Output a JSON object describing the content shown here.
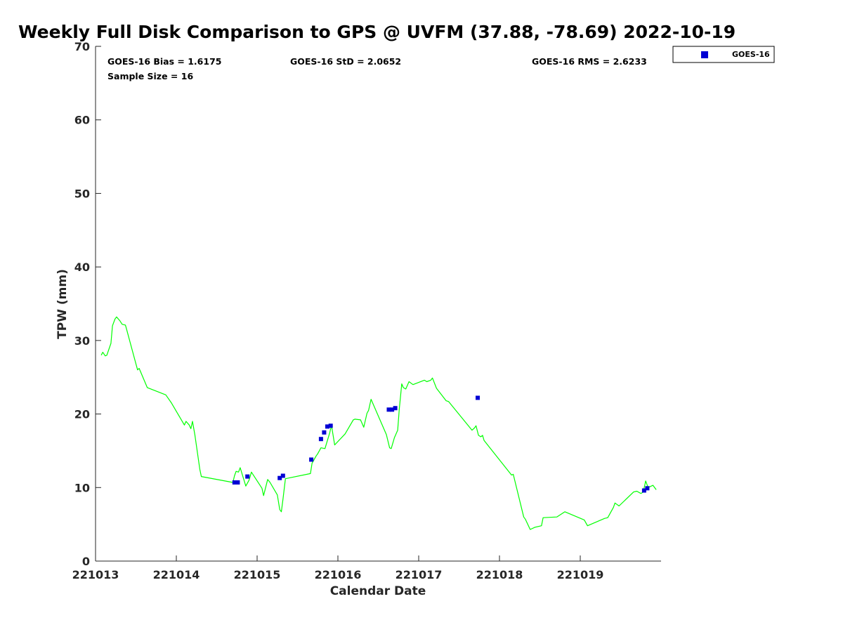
{
  "chart_data": {
    "type": "line",
    "title": "Weekly Full Disk Comparison to GPS @ UVFM (37.88, -78.69) 2022-10-19",
    "xlabel": "Calendar Date",
    "ylabel": "TPW (mm)",
    "xlim": [
      221013.0,
      221020.0
    ],
    "ylim": [
      0,
      70
    ],
    "x_ticks": [
      221013,
      221014,
      221015,
      221016,
      221017,
      221018,
      221019
    ],
    "x_tick_labels": [
      "221013",
      "221014",
      "221015",
      "221016",
      "221017",
      "221018",
      "221019"
    ],
    "y_ticks": [
      0,
      10,
      20,
      30,
      40,
      50,
      60,
      70
    ],
    "y_tick_labels": [
      "0",
      "10",
      "20",
      "30",
      "40",
      "50",
      "60",
      "70"
    ],
    "grid": false,
    "legend_position": "top-right, outside plot",
    "stats": {
      "bias": "GOES-16 Bias = 1.6175",
      "std": "GOES-16 StD = 2.0652",
      "rms": "GOES-16 RMS = 2.6233",
      "sample": "Sample Size = 16"
    },
    "series": [
      {
        "kind": "line",
        "color": "#00ff00",
        "x": [
          221013.07,
          221013.09,
          221013.12,
          221013.14,
          221013.19,
          221013.21,
          221013.24,
          221013.26,
          221013.3,
          221013.33,
          221013.37,
          221013.38,
          221013.52,
          221013.54,
          221013.64,
          221013.87,
          221013.94,
          221014.1,
          221014.12,
          221014.16,
          221014.18,
          221014.2,
          221014.23,
          221014.29,
          221014.31,
          221014.7,
          221014.72,
          221014.74,
          221014.77,
          221014.79,
          221014.86,
          221014.9,
          221014.93,
          221015.06,
          221015.08,
          221015.13,
          221015.16,
          221015.25,
          221015.28,
          221015.3,
          221015.32,
          221015.35,
          221015.66,
          221015.68,
          221015.73,
          221015.75,
          221015.79,
          221015.84,
          221015.9,
          221015.92,
          221015.96,
          221016.09,
          221016.19,
          221016.21,
          221016.28,
          221016.32,
          221016.36,
          221016.38,
          221016.41,
          221016.6,
          221016.64,
          221016.66,
          221016.7,
          221016.74,
          221016.76,
          221016.79,
          221016.81,
          221016.84,
          221016.88,
          221016.93,
          221017.07,
          221017.1,
          221017.15,
          221017.17,
          221017.22,
          221017.34,
          221017.37,
          221017.66,
          221017.69,
          221017.71,
          221017.74,
          221017.77,
          221017.79,
          221017.81,
          221018.15,
          221018.17,
          221018.3,
          221018.32,
          221018.38,
          221018.44,
          221018.52,
          221018.54,
          221018.71,
          221018.81,
          221019.05,
          221019.09,
          221019.3,
          221019.34,
          221019.41,
          221019.43,
          221019.48,
          221019.66,
          221019.7,
          221019.75,
          221019.78,
          221019.81,
          221019.84,
          221019.9,
          221019.94
        ],
        "values": [
          28.0,
          28.4,
          27.9,
          28.0,
          29.6,
          32.0,
          32.9,
          33.2,
          32.7,
          32.2,
          32.1,
          31.7,
          26.0,
          26.2,
          23.6,
          22.6,
          21.5,
          18.5,
          19.0,
          18.5,
          18.0,
          19.0,
          17.1,
          12.5,
          11.5,
          10.7,
          11.6,
          12.2,
          12.1,
          12.7,
          10.2,
          11.0,
          12.1,
          9.9,
          8.9,
          11.1,
          10.7,
          9.0,
          7.0,
          6.7,
          8.4,
          11.2,
          11.9,
          13.3,
          14.3,
          14.6,
          15.4,
          15.3,
          17.5,
          18.5,
          15.8,
          17.3,
          19.2,
          19.3,
          19.2,
          18.2,
          20.1,
          20.5,
          22.0,
          17.2,
          15.4,
          15.3,
          16.8,
          17.8,
          20.7,
          24.1,
          23.6,
          23.4,
          24.4,
          24.0,
          24.6,
          24.4,
          24.6,
          24.9,
          23.5,
          21.8,
          21.7,
          17.8,
          18.1,
          18.4,
          17.1,
          16.9,
          17.1,
          16.4,
          11.7,
          11.8,
          6.0,
          5.7,
          4.3,
          4.6,
          4.8,
          5.9,
          6.0,
          6.7,
          5.6,
          4.8,
          5.8,
          5.9,
          7.3,
          7.9,
          7.5,
          9.4,
          9.5,
          9.2,
          9.4,
          10.9,
          10.0,
          10.3,
          9.7
        ]
      },
      {
        "name": "GOES-16",
        "kind": "scatter",
        "color": "#0000d4",
        "x": [
          221014.72,
          221014.76,
          221014.88,
          221015.28,
          221015.32,
          221015.67,
          221015.79,
          221015.83,
          221015.87,
          221015.91,
          221016.63,
          221016.67,
          221016.71,
          221017.73,
          221019.79,
          221019.83
        ],
        "values": [
          10.7,
          10.7,
          11.5,
          11.3,
          11.6,
          13.8,
          16.6,
          17.5,
          18.3,
          18.4,
          20.6,
          20.6,
          20.8,
          22.2,
          9.6,
          9.9
        ]
      }
    ]
  }
}
